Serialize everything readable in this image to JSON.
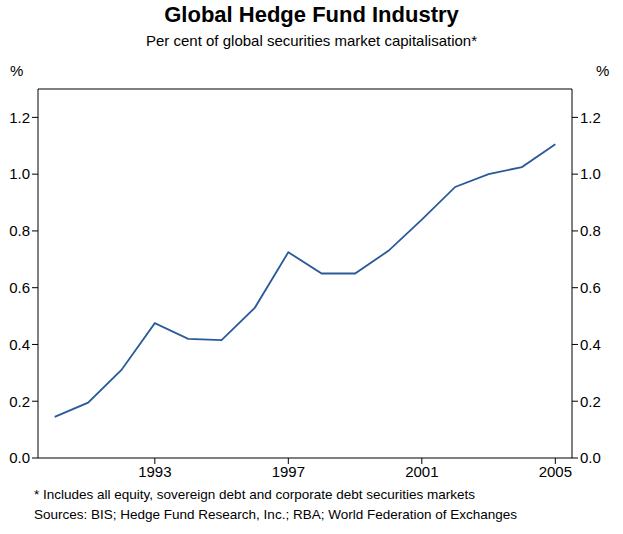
{
  "chart_data": {
    "type": "line",
    "title": "Global Hedge Fund Industry",
    "subtitle": "Per cent of global securities market capitalisation*",
    "y_label": "%",
    "footnote": "* Includes all equity, sovereign debt and corporate debt securities markets",
    "sources": "Sources: BIS; Hedge Fund Research, Inc.; RBA; World Federation of Exchanges",
    "x": [
      1990,
      1991,
      1992,
      1993,
      1994,
      1995,
      1996,
      1997,
      1998,
      1999,
      2000,
      2001,
      2002,
      2003,
      2004,
      2005
    ],
    "series": [
      {
        "name": "Global hedge fund industry",
        "color": "#2a5a9a",
        "values": [
          0.145,
          0.195,
          0.31,
          0.475,
          0.42,
          0.415,
          0.53,
          0.725,
          0.65,
          0.65,
          0.73,
          0.84,
          0.955,
          1.0,
          1.025,
          1.105
        ]
      }
    ],
    "xlim": [
      1989.5,
      2005.5
    ],
    "xticks": [
      1993,
      1997,
      2001,
      2005
    ],
    "ylim": [
      0,
      1.3
    ],
    "yticks": [
      {
        "value": 0,
        "label": "0.0"
      },
      0.2,
      0.4,
      0.6,
      0.8,
      {
        "value": 1,
        "label": "1.0"
      },
      1.2
    ],
    "grid": false
  }
}
